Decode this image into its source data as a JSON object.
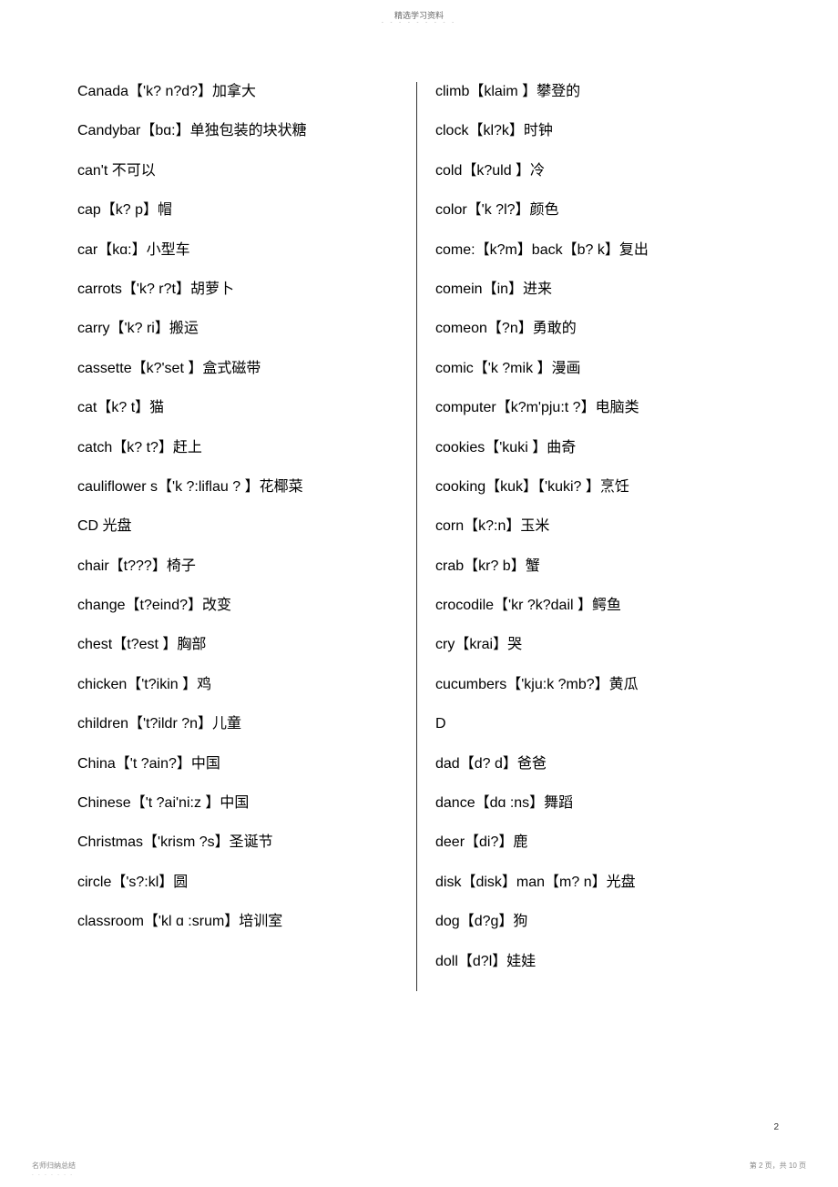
{
  "header": {
    "label": "精选学习资料",
    "dots": "- - - - - - - - -"
  },
  "columns": {
    "left": [
      "Canada【'k? n?d?】加拿大",
      "Candybar【bɑ:】单独包装的块状糖",
      "can't 不可以",
      "cap【k? p】帽",
      "car【kɑ:】小型车",
      "carrots【'k? r?t】胡萝卜",
      "carry【'k? ri】搬运",
      "cassette【k?'set 】盒式磁带",
      "cat【k? t】猫",
      "catch【k? t?】赶上",
      "cauliflower s【'k ?:liflau  ? 】花椰菜",
      "CD 光盘",
      "chair【t???】椅子",
      "change【t?eind?】改变",
      "chest【t?est 】胸部",
      "chicken【't?ikin 】鸡",
      "children【't?ildr ?n】儿童",
      "China【't ?ain?】中国",
      "Chinese【't ?ai'ni:z 】中国",
      "Christmas【'krism  ?s】圣诞节",
      "circle【's?:kl】圆",
      "classroom【'kl ɑ :srum】培训室"
    ],
    "right": [
      "climb【klaim 】攀登的",
      "clock【kl?k】时钟",
      "cold【k?uld 】冷",
      "color【'k ?l?】颜色",
      "come:【k?m】back【b? k】复出",
      "comein【in】进来",
      "comeon【?n】勇敢的",
      "comic【'k ?mik 】漫画",
      "computer【k?m'pju:t  ?】电脑类",
      "cookies【'kuki 】曲奇",
      "cooking【kuk】【'kuki? 】烹饪",
      "corn【k?:n】玉米",
      "crab【kr? b】蟹",
      "crocodile【'kr ?k?dail 】鳄鱼",
      "cry【krai】哭",
      "cucumbers【'kju:k  ?mb?】黄瓜",
      "D",
      "dad【d? d】爸爸",
      "dance【dɑ :ns】舞蹈",
      "deer【di?】鹿",
      "disk【disk】man【m? n】光盘",
      "dog【d?g】狗",
      "doll【d?l】娃娃"
    ]
  },
  "page_number": "2",
  "footer": {
    "left": "名师归纳总结",
    "left_dots": "- - - - - - -",
    "right": "第 2 页，共 10 页"
  }
}
